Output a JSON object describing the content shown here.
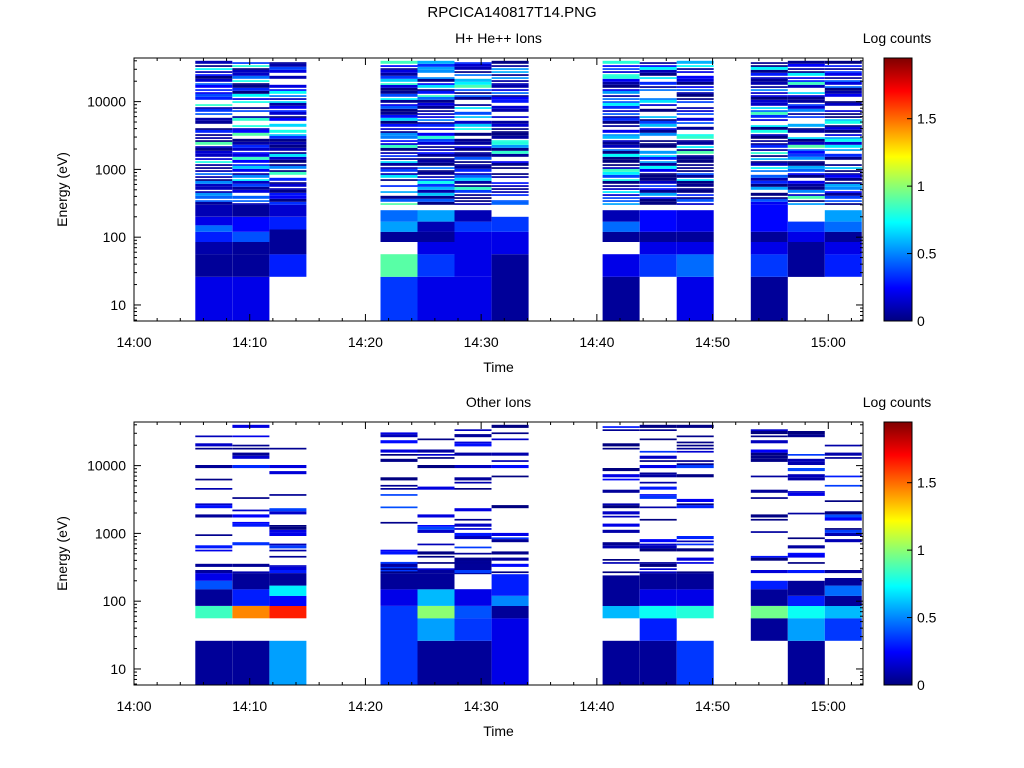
{
  "page_title": "RPCICA140817T14.PNG",
  "colormap": [
    "#00007f",
    "#0000ff",
    "#007fff",
    "#00ffff",
    "#7fff7f",
    "#ffff00",
    "#ff7f00",
    "#ff0000",
    "#7f0000"
  ],
  "chart_data": [
    {
      "type": "heatmap",
      "title": "H+ He++ Ions",
      "xlabel": "Time",
      "ylabel": "Energy (eV)",
      "colorbar_label": "Log counts",
      "x_ticks": [
        "14:00",
        "14:10",
        "14:20",
        "14:30",
        "14:40",
        "14:50",
        "15:00"
      ],
      "x_range_minutes": [
        0,
        63
      ],
      "y_ticks": [
        {
          "value": 10,
          "label": "10"
        },
        {
          "value": 100,
          "label": "100"
        },
        {
          "value": 1000,
          "label": "1000"
        },
        {
          "value": 10000,
          "label": "10000"
        }
      ],
      "y_range": [
        5.8,
        44000
      ],
      "y_scale": "log",
      "colorbar_range": [
        0,
        1.95
      ],
      "colorbar_ticks": [
        {
          "value": 0,
          "label": "0"
        },
        {
          "value": 0.5,
          "label": "0.5"
        },
        {
          "value": 1,
          "label": "1"
        },
        {
          "value": 1.5,
          "label": "1.5"
        }
      ],
      "columns": [
        {
          "t0": 5.3,
          "t1": 8.5,
          "seed": 11,
          "bins": [
            {
              "e0": 5.8,
              "e1": 26,
              "v": 0.2
            },
            {
              "e0": 26,
              "e1": 56,
              "v": 0.05
            },
            {
              "e0": 56,
              "e1": 85,
              "v": 0.08
            },
            {
              "e0": 85,
              "e1": 120,
              "v": 0.3
            },
            {
              "e0": 120,
              "e1": 150,
              "v": 0.45
            },
            {
              "e0": 150,
              "e1": 200,
              "v": 0.2
            },
            {
              "e0": 200,
              "e1": 300,
              "v": 0.1
            }
          ]
        },
        {
          "t0": 8.5,
          "t1": 11.7,
          "seed": 23,
          "bins": [
            {
              "e0": 5.8,
              "e1": 26,
              "v": 0.2
            },
            {
              "e0": 26,
              "e1": 56,
              "v": 0.05
            },
            {
              "e0": 56,
              "e1": 85,
              "v": 0.05
            },
            {
              "e0": 85,
              "e1": 120,
              "v": 0.4
            },
            {
              "e0": 120,
              "e1": 200,
              "v": 0.25
            },
            {
              "e0": 200,
              "e1": 300,
              "v": 0.05
            }
          ]
        },
        {
          "t0": 11.7,
          "t1": 14.9,
          "seed": 37,
          "bins": [
            {
              "e0": 26,
              "e1": 56,
              "v": 0.3
            },
            {
              "e0": 56,
              "e1": 85,
              "v": 0.05
            },
            {
              "e0": 85,
              "e1": 130,
              "v": 0.05
            },
            {
              "e0": 130,
              "e1": 200,
              "v": 0.3
            },
            {
              "e0": 200,
              "e1": 300,
              "v": 0.15
            }
          ]
        },
        {
          "t0": 21.3,
          "t1": 24.5,
          "seed": 41,
          "bins": [
            {
              "e0": 5.8,
              "e1": 26,
              "v": 0.35
            },
            {
              "e0": 26,
              "e1": 56,
              "v": 0.9
            },
            {
              "e0": 85,
              "e1": 120,
              "v": 0.05
            },
            {
              "e0": 120,
              "e1": 170,
              "v": 0.55
            },
            {
              "e0": 170,
              "e1": 250,
              "v": 0.45
            }
          ]
        },
        {
          "t0": 24.5,
          "t1": 27.7,
          "seed": 53,
          "bins": [
            {
              "e0": 5.8,
              "e1": 26,
              "v": 0.2
            },
            {
              "e0": 26,
              "e1": 56,
              "v": 0.35
            },
            {
              "e0": 56,
              "e1": 85,
              "v": 0.2
            },
            {
              "e0": 85,
              "e1": 120,
              "v": 0.05
            },
            {
              "e0": 120,
              "e1": 170,
              "v": 0.1
            },
            {
              "e0": 170,
              "e1": 250,
              "v": 0.55
            }
          ]
        },
        {
          "t0": 27.7,
          "t1": 30.9,
          "seed": 67,
          "bins": [
            {
              "e0": 5.8,
              "e1": 26,
              "v": 0.2
            },
            {
              "e0": 26,
              "e1": 120,
              "v": 0.2
            },
            {
              "e0": 120,
              "e1": 170,
              "v": 0.35
            },
            {
              "e0": 170,
              "e1": 250,
              "v": 0.1
            }
          ]
        },
        {
          "t0": 30.9,
          "t1": 34.1,
          "seed": 71,
          "bins": [
            {
              "e0": 5.8,
              "e1": 56,
              "v": 0.05
            },
            {
              "e0": 56,
              "e1": 120,
              "v": 0.2
            },
            {
              "e0": 120,
              "e1": 200,
              "v": 0.35
            }
          ]
        },
        {
          "t0": 40.5,
          "t1": 43.7,
          "seed": 83,
          "bins": [
            {
              "e0": 5.8,
              "e1": 26,
              "v": 0.05
            },
            {
              "e0": 26,
              "e1": 56,
              "v": 0.2
            },
            {
              "e0": 85,
              "e1": 120,
              "v": 0.05
            },
            {
              "e0": 120,
              "e1": 170,
              "v": 0.45
            },
            {
              "e0": 170,
              "e1": 250,
              "v": 0.1
            }
          ]
        },
        {
          "t0": 43.7,
          "t1": 46.9,
          "seed": 97,
          "bins": [
            {
              "e0": 26,
              "e1": 56,
              "v": 0.35
            },
            {
              "e0": 56,
              "e1": 85,
              "v": 0.2
            },
            {
              "e0": 85,
              "e1": 120,
              "v": 0.05
            },
            {
              "e0": 120,
              "e1": 250,
              "v": 0.25
            }
          ]
        },
        {
          "t0": 46.9,
          "t1": 50.1,
          "seed": 101,
          "bins": [
            {
              "e0": 5.8,
              "e1": 26,
              "v": 0.2
            },
            {
              "e0": 26,
              "e1": 56,
              "v": 0.45
            },
            {
              "e0": 56,
              "e1": 85,
              "v": 0.2
            },
            {
              "e0": 85,
              "e1": 120,
              "v": 0.05
            },
            {
              "e0": 120,
              "e1": 250,
              "v": 0.2
            }
          ]
        },
        {
          "t0": 53.3,
          "t1": 56.5,
          "seed": 113,
          "bins": [
            {
              "e0": 5.8,
              "e1": 26,
              "v": 0.05
            },
            {
              "e0": 26,
              "e1": 56,
              "v": 0.35
            },
            {
              "e0": 56,
              "e1": 85,
              "v": 0.2
            },
            {
              "e0": 85,
              "e1": 120,
              "v": 0.05
            },
            {
              "e0": 120,
              "e1": 300,
              "v": 0.25
            }
          ]
        },
        {
          "t0": 56.5,
          "t1": 59.7,
          "seed": 127,
          "bins": [
            {
              "e0": 26,
              "e1": 85,
              "v": 0.05
            },
            {
              "e0": 85,
              "e1": 120,
              "v": 0.2
            },
            {
              "e0": 120,
              "e1": 170,
              "v": 0.35
            }
          ]
        },
        {
          "t0": 59.7,
          "t1": 62.9,
          "seed": 131,
          "bins": [
            {
              "e0": 26,
              "e1": 56,
              "v": 0.3
            },
            {
              "e0": 56,
              "e1": 85,
              "v": 0.2
            },
            {
              "e0": 85,
              "e1": 120,
              "v": 0.05
            },
            {
              "e0": 120,
              "e1": 170,
              "v": 0.45
            },
            {
              "e0": 170,
              "e1": 250,
              "v": 0.55
            }
          ]
        }
      ],
      "upper_band": {
        "from": 300,
        "to": 40000,
        "max_value": 0.9,
        "density": 0.9
      }
    },
    {
      "type": "heatmap",
      "title": "Other Ions",
      "xlabel": "Time",
      "ylabel": "Energy (eV)",
      "colorbar_label": "Log counts",
      "x_ticks": [
        "14:00",
        "14:10",
        "14:20",
        "14:30",
        "14:40",
        "14:50",
        "15:00"
      ],
      "x_range_minutes": [
        0,
        63
      ],
      "y_ticks": [
        {
          "value": 10,
          "label": "10"
        },
        {
          "value": 100,
          "label": "100"
        },
        {
          "value": 1000,
          "label": "1000"
        },
        {
          "value": 10000,
          "label": "10000"
        }
      ],
      "y_range": [
        5.8,
        44000
      ],
      "y_scale": "log",
      "colorbar_range": [
        0,
        1.95
      ],
      "colorbar_ticks": [
        {
          "value": 0,
          "label": "0"
        },
        {
          "value": 0.5,
          "label": "0.5"
        },
        {
          "value": 1,
          "label": "1"
        },
        {
          "value": 1.5,
          "label": "1.5"
        }
      ],
      "columns": [
        {
          "t0": 5.3,
          "t1": 8.5,
          "seed": 211,
          "bins": [
            {
              "e0": 5.8,
              "e1": 26,
              "v": 0.05
            },
            {
              "e0": 56,
              "e1": 85,
              "v": 0.85
            },
            {
              "e0": 85,
              "e1": 150,
              "v": 0.05
            },
            {
              "e0": 150,
              "e1": 200,
              "v": 0.4
            },
            {
              "e0": 200,
              "e1": 260,
              "v": 0.2
            }
          ]
        },
        {
          "t0": 8.5,
          "t1": 11.7,
          "seed": 223,
          "bins": [
            {
              "e0": 5.8,
              "e1": 26,
              "v": 0.05
            },
            {
              "e0": 56,
              "e1": 85,
              "v": 1.45
            },
            {
              "e0": 85,
              "e1": 150,
              "v": 0.3
            },
            {
              "e0": 150,
              "e1": 260,
              "v": 0.05
            }
          ]
        },
        {
          "t0": 11.7,
          "t1": 14.9,
          "seed": 227,
          "bins": [
            {
              "e0": 5.8,
              "e1": 26,
              "v": 0.55
            },
            {
              "e0": 56,
              "e1": 85,
              "v": 1.65
            },
            {
              "e0": 85,
              "e1": 120,
              "v": 0.25
            },
            {
              "e0": 120,
              "e1": 170,
              "v": 0.7
            },
            {
              "e0": 170,
              "e1": 260,
              "v": 0.05
            }
          ]
        },
        {
          "t0": 21.3,
          "t1": 24.5,
          "seed": 229,
          "bins": [
            {
              "e0": 5.8,
              "e1": 85,
              "v": 0.35
            },
            {
              "e0": 85,
              "e1": 150,
              "v": 0.2
            },
            {
              "e0": 150,
              "e1": 260,
              "v": 0.05
            },
            {
              "e0": 260,
              "e1": 380,
              "v": 0.35
            }
          ]
        },
        {
          "t0": 24.5,
          "t1": 27.7,
          "seed": 233,
          "bins": [
            {
              "e0": 5.8,
              "e1": 26,
              "v": 0.05
            },
            {
              "e0": 26,
              "e1": 56,
              "v": 0.55
            },
            {
              "e0": 56,
              "e1": 85,
              "v": 1.0
            },
            {
              "e0": 85,
              "e1": 150,
              "v": 0.6
            },
            {
              "e0": 150,
              "e1": 260,
              "v": 0.05
            }
          ]
        },
        {
          "t0": 27.7,
          "t1": 30.9,
          "seed": 239,
          "bins": [
            {
              "e0": 5.8,
              "e1": 26,
              "v": 0.05
            },
            {
              "e0": 26,
              "e1": 56,
              "v": 0.35
            },
            {
              "e0": 56,
              "e1": 85,
              "v": 0.4
            },
            {
              "e0": 85,
              "e1": 150,
              "v": 0.2
            },
            {
              "e0": 250,
              "e1": 400,
              "v": 0.05
            }
          ]
        },
        {
          "t0": 30.9,
          "t1": 34.1,
          "seed": 241,
          "bins": [
            {
              "e0": 5.8,
              "e1": 56,
              "v": 0.2
            },
            {
              "e0": 56,
              "e1": 85,
              "v": 0.05
            },
            {
              "e0": 85,
              "e1": 120,
              "v": 0.5
            },
            {
              "e0": 120,
              "e1": 250,
              "v": 0.3
            }
          ]
        },
        {
          "t0": 40.5,
          "t1": 43.7,
          "seed": 251,
          "bins": [
            {
              "e0": 5.8,
              "e1": 26,
              "v": 0.05
            },
            {
              "e0": 56,
              "e1": 85,
              "v": 0.6
            },
            {
              "e0": 85,
              "e1": 240,
              "v": 0.05
            }
          ]
        },
        {
          "t0": 43.7,
          "t1": 46.9,
          "seed": 257,
          "bins": [
            {
              "e0": 5.8,
              "e1": 26,
              "v": 0.05
            },
            {
              "e0": 26,
              "e1": 56,
              "v": 0.3
            },
            {
              "e0": 56,
              "e1": 85,
              "v": 0.75
            },
            {
              "e0": 85,
              "e1": 150,
              "v": 0.2
            },
            {
              "e0": 150,
              "e1": 260,
              "v": 0.05
            }
          ]
        },
        {
          "t0": 46.9,
          "t1": 50.1,
          "seed": 263,
          "bins": [
            {
              "e0": 5.8,
              "e1": 26,
              "v": 0.35
            },
            {
              "e0": 56,
              "e1": 85,
              "v": 0.8
            },
            {
              "e0": 85,
              "e1": 150,
              "v": 0.2
            },
            {
              "e0": 150,
              "e1": 260,
              "v": 0.05
            }
          ]
        },
        {
          "t0": 53.3,
          "t1": 56.5,
          "seed": 269,
          "bins": [
            {
              "e0": 26,
              "e1": 56,
              "v": 0.05
            },
            {
              "e0": 56,
              "e1": 85,
              "v": 0.95
            },
            {
              "e0": 85,
              "e1": 150,
              "v": 0.05
            },
            {
              "e0": 150,
              "e1": 200,
              "v": 0.3
            }
          ]
        },
        {
          "t0": 56.5,
          "t1": 59.7,
          "seed": 271,
          "bins": [
            {
              "e0": 5.8,
              "e1": 26,
              "v": 0.05
            },
            {
              "e0": 26,
              "e1": 56,
              "v": 0.55
            },
            {
              "e0": 56,
              "e1": 85,
              "v": 0.75
            },
            {
              "e0": 85,
              "e1": 120,
              "v": 0.3
            },
            {
              "e0": 120,
              "e1": 200,
              "v": 0.05
            }
          ]
        },
        {
          "t0": 59.7,
          "t1": 62.9,
          "seed": 277,
          "bins": [
            {
              "e0": 26,
              "e1": 56,
              "v": 0.35
            },
            {
              "e0": 56,
              "e1": 85,
              "v": 0.6
            },
            {
              "e0": 85,
              "e1": 120,
              "v": 0.05
            },
            {
              "e0": 120,
              "e1": 170,
              "v": 0.45
            },
            {
              "e0": 170,
              "e1": 220,
              "v": 0.05
            }
          ]
        }
      ],
      "upper_band": {
        "from": 260,
        "to": 40000,
        "max_value": 0.4,
        "density": 0.35
      }
    }
  ]
}
